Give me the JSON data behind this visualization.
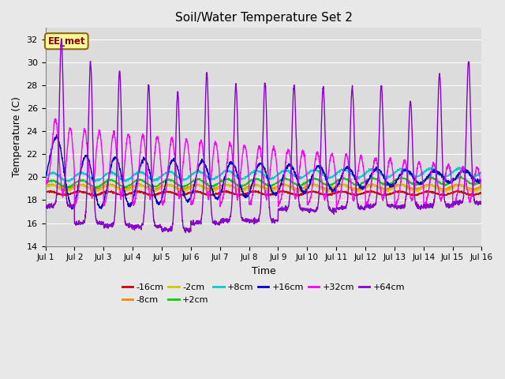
{
  "title": "Soil/Water Temperature Set 2",
  "xlabel": "Time",
  "ylabel": "Temperature (C)",
  "ylim": [
    14,
    33
  ],
  "xlim": [
    0,
    15
  ],
  "yticks": [
    14,
    16,
    18,
    20,
    22,
    24,
    26,
    28,
    30,
    32
  ],
  "xtick_labels": [
    "Jul 1",
    "Jul 2",
    "Jul 3",
    "Jul 4",
    "Jul 5",
    "Jul 6",
    "Jul 7",
    "Jul 8",
    "Jul 9",
    "Jul 10",
    "Jul 11",
    "Jul 12",
    "Jul 13",
    "Jul 14",
    "Jul 15",
    "Jul 16"
  ],
  "annotation_text": "EE_met",
  "series_colors": {
    "-16cm": "#cc0000",
    "-8cm": "#ff8800",
    "-2cm": "#cccc00",
    "+2cm": "#00cc00",
    "+8cm": "#00cccc",
    "+16cm": "#0000cc",
    "+32cm": "#ff00ff",
    "+64cm": "#8800cc"
  },
  "bg_color": "#e8e8e8",
  "plot_bg_color": "#dcdcdc",
  "grid_color": "#ffffff",
  "legend_ncol_row1": 6,
  "legend_ncol_row2": 2
}
